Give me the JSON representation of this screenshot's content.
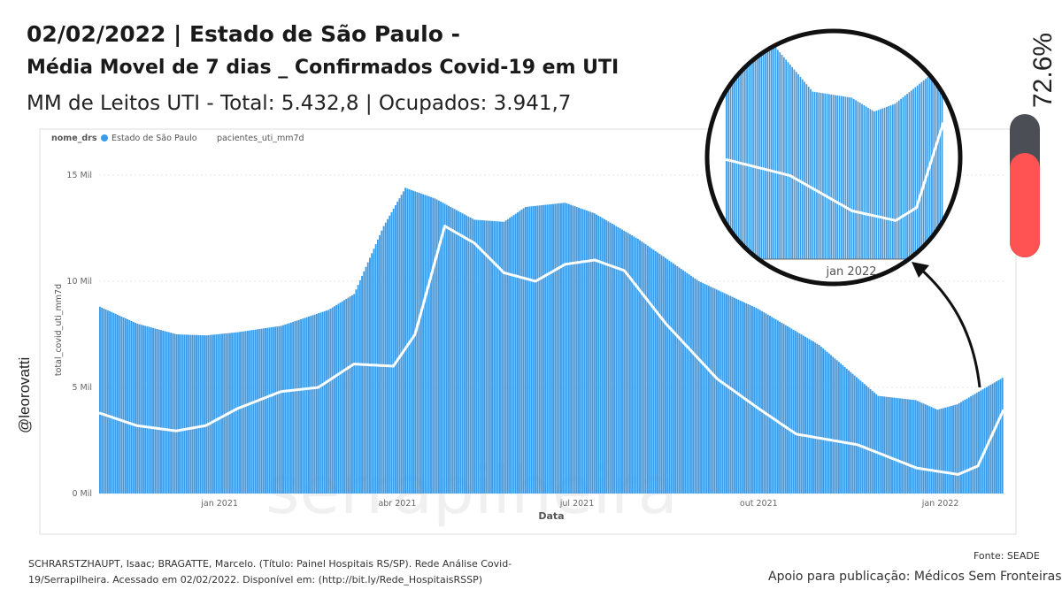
{
  "header": {
    "line1": "02/02/2022 | Estado de São Paulo -",
    "line2": "Média Movel de 7 dias _ Confirmados Covid-19 em UTI",
    "line3": "MM de Leitos UTI - Total: 5.432,8 | Ocupados: 3.941,7"
  },
  "side_handle": "@leorovatti",
  "occupancy": {
    "label": "72.6%",
    "value": 0.726,
    "fill_color": "#ff5252",
    "track_color": "#4b4e55"
  },
  "footer": {
    "citation": "SCHRARSTZHAUPT, Isaac; BRAGATTE, Marcelo. (Título: Painel Hospitais RS/SP). Rede Análise Covid-19/Serrapilheira. Acessado em 02/02/2022. Disponível em: (http://bit.ly/Rede_HospitaisRSSP)",
    "source": "Fonte: SEADE",
    "support": "Apoio para publicação: Médicos Sem Fronteiras"
  },
  "watermark": "serrapilheira",
  "chart_data": {
    "type": "bar",
    "legend": {
      "title": "nome_drs",
      "items": [
        "Estado de São Paulo",
        "pacientes_uti_mm7d"
      ],
      "position": "top-left"
    },
    "xlabel": "Data",
    "ylabel": "total_covid_uti_mm7d",
    "ylim": [
      0,
      15000
    ],
    "y_ticks": [
      {
        "value": 0,
        "label": "0 Mil"
      },
      {
        "value": 5000,
        "label": "5 Mil"
      },
      {
        "value": 10000,
        "label": "10 Mil"
      },
      {
        "value": 15000,
        "label": "15 Mil"
      }
    ],
    "x_range": [
      "2020-11-01",
      "2022-02-02"
    ],
    "x_ticks": [
      {
        "date": "2021-01-01",
        "label": "jan 2021"
      },
      {
        "date": "2021-04-01",
        "label": "abr 2021"
      },
      {
        "date": "2021-07-01",
        "label": "jul 2021"
      },
      {
        "date": "2021-10-01",
        "label": "out 2021"
      },
      {
        "date": "2022-01-01",
        "label": "jan 2022"
      }
    ],
    "bar_color": "#3a9be8",
    "line_color": "#ffffff",
    "bar_keypoints": [
      [
        "2020-11-01",
        8800
      ],
      [
        "2020-11-20",
        8000
      ],
      [
        "2020-12-10",
        7500
      ],
      [
        "2020-12-25",
        7450
      ],
      [
        "2021-01-10",
        7600
      ],
      [
        "2021-02-01",
        7900
      ],
      [
        "2021-02-25",
        8650
      ],
      [
        "2021-03-10",
        9400
      ],
      [
        "2021-03-25",
        12600
      ],
      [
        "2021-04-05",
        14400
      ],
      [
        "2021-04-20",
        13900
      ],
      [
        "2021-05-10",
        12900
      ],
      [
        "2021-05-25",
        12800
      ],
      [
        "2021-06-05",
        13500
      ],
      [
        "2021-06-25",
        13700
      ],
      [
        "2021-07-10",
        13200
      ],
      [
        "2021-08-01",
        12000
      ],
      [
        "2021-09-01",
        10000
      ],
      [
        "2021-10-01",
        8700
      ],
      [
        "2021-11-01",
        7000
      ],
      [
        "2021-12-01",
        4600
      ],
      [
        "2021-12-20",
        4400
      ],
      [
        "2021-12-31",
        3950
      ],
      [
        "2022-01-10",
        4200
      ],
      [
        "2022-02-02",
        5450
      ]
    ],
    "line_keypoints": [
      [
        "2020-11-01",
        3800
      ],
      [
        "2020-11-20",
        3200
      ],
      [
        "2020-12-10",
        2950
      ],
      [
        "2020-12-25",
        3200
      ],
      [
        "2021-01-10",
        4000
      ],
      [
        "2021-02-01",
        4800
      ],
      [
        "2021-02-20",
        5000
      ],
      [
        "2021-03-10",
        6100
      ],
      [
        "2021-03-30",
        6000
      ],
      [
        "2021-04-10",
        7500
      ],
      [
        "2021-04-25",
        12600
      ],
      [
        "2021-05-10",
        11800
      ],
      [
        "2021-05-25",
        10400
      ],
      [
        "2021-06-10",
        10000
      ],
      [
        "2021-06-25",
        10800
      ],
      [
        "2021-07-10",
        11000
      ],
      [
        "2021-07-25",
        10500
      ],
      [
        "2021-08-15",
        8000
      ],
      [
        "2021-09-10",
        5400
      ],
      [
        "2021-10-01",
        4000
      ],
      [
        "2021-10-20",
        2800
      ],
      [
        "2021-11-20",
        2300
      ],
      [
        "2021-12-20",
        1200
      ],
      [
        "2022-01-10",
        900
      ],
      [
        "2022-01-20",
        1300
      ],
      [
        "2022-02-02",
        3950
      ]
    ]
  },
  "zoom_callout": {
    "tick_label": "jan 2022"
  }
}
